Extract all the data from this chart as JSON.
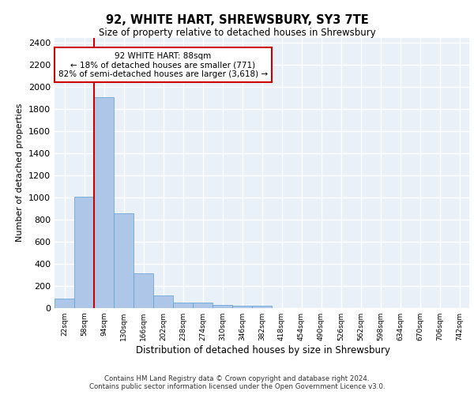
{
  "title": "92, WHITE HART, SHREWSBURY, SY3 7TE",
  "subtitle": "Size of property relative to detached houses in Shrewsbury",
  "xlabel": "Distribution of detached houses by size in Shrewsbury",
  "ylabel": "Number of detached properties",
  "bin_labels": [
    "22sqm",
    "58sqm",
    "94sqm",
    "130sqm",
    "166sqm",
    "202sqm",
    "238sqm",
    "274sqm",
    "310sqm",
    "346sqm",
    "382sqm",
    "418sqm",
    "454sqm",
    "490sqm",
    "526sqm",
    "562sqm",
    "598sqm",
    "634sqm",
    "670sqm",
    "706sqm",
    "742sqm"
  ],
  "bar_values": [
    88,
    1012,
    1908,
    858,
    315,
    112,
    52,
    47,
    30,
    18,
    18,
    0,
    0,
    0,
    0,
    0,
    0,
    0,
    0,
    0,
    0
  ],
  "bar_color": "#aec6e8",
  "bar_edge_color": "#5a9fd4",
  "background_color": "#eaf0f8",
  "grid_color": "#ffffff",
  "annotation_text": "92 WHITE HART: 88sqm\n← 18% of detached houses are smaller (771)\n82% of semi-detached houses are larger (3,618) →",
  "annotation_box_color": "#ffffff",
  "annotation_box_edge": "#cc0000",
  "ylim": [
    0,
    2450
  ],
  "yticks": [
    0,
    200,
    400,
    600,
    800,
    1000,
    1200,
    1400,
    1600,
    1800,
    2000,
    2200,
    2400
  ],
  "footer_line1": "Contains HM Land Registry data © Crown copyright and database right 2024.",
  "footer_line2": "Contains public sector information licensed under the Open Government Licence v3.0.",
  "red_line_bin": 2
}
